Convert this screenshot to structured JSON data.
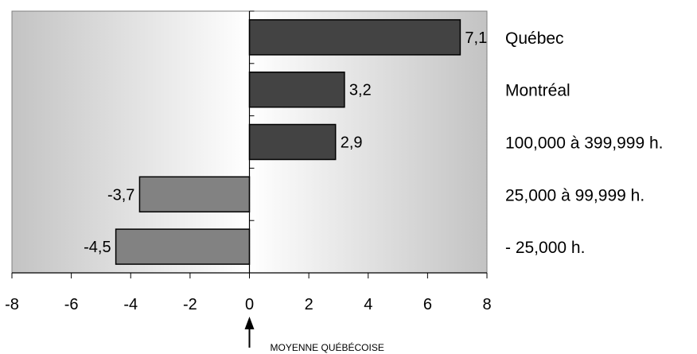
{
  "chart_data": {
    "type": "bar",
    "orientation": "horizontal",
    "categories": [
      "Québec",
      "Montréal",
      "100,000 à 399,999 h.",
      "25,000 à 99,999 h.",
      "- 25,000 h."
    ],
    "values": [
      7.1,
      3.2,
      2.9,
      -3.7,
      -4.5
    ],
    "value_labels": [
      "7,1",
      "3,2",
      "2,9",
      "-3,7",
      "-4,5"
    ],
    "x_ticks": [
      -8,
      -6,
      -4,
      -2,
      0,
      2,
      4,
      6,
      8
    ],
    "x_tick_labels": [
      "-8",
      "-6",
      "-4",
      "-2",
      "0",
      "2",
      "4",
      "6",
      "8"
    ],
    "xlim": [
      -8,
      8
    ],
    "title": "",
    "xlabel": "",
    "ylabel": "",
    "grid": false,
    "legend": "none",
    "colors": {
      "positive_bar": "#434343",
      "negative_bar": "#828282",
      "bar_stroke": "#000000",
      "plot_edge": "#c3c3c3",
      "plot_center": "#ffffff"
    },
    "annotation": {
      "text": "MOYENNE QUÉBÉCOISE",
      "at_x": 0,
      "symbol": "up-arrow"
    }
  }
}
